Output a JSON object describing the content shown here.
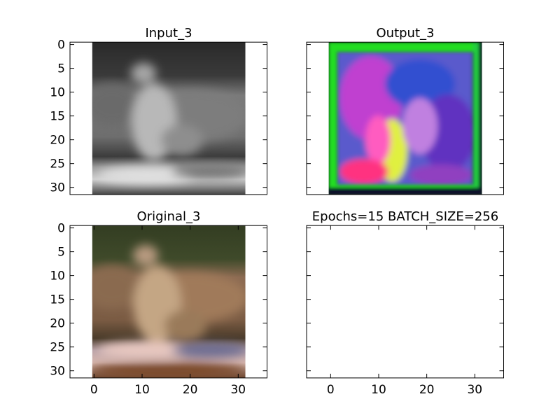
{
  "figure": {
    "background": "#ffffff"
  },
  "chart_data": [
    {
      "type": "image",
      "title": "Input_3",
      "content": "grayscale blurry image of a small bird perched on a log",
      "xlim": [
        -5,
        36
      ],
      "ylim": [
        31.5,
        -0.5
      ],
      "image_extent": [
        -0.5,
        31.5
      ],
      "xticks": [],
      "yticks": [
        0,
        5,
        10,
        15,
        20,
        25,
        30
      ],
      "show_xtick_labels": false,
      "show_ytick_labels": true
    },
    {
      "type": "image",
      "title": "Output_3",
      "content": "colorized reconstruction with green border, magenta, blue and yellow-green regions",
      "xlim": [
        -5,
        36
      ],
      "ylim": [
        31.5,
        -0.5
      ],
      "image_extent": [
        -0.5,
        31.5
      ],
      "xticks": [],
      "yticks": [
        0,
        5,
        10,
        15,
        20,
        25,
        30
      ],
      "show_xtick_labels": false,
      "show_ytick_labels": false
    },
    {
      "type": "image",
      "title": "Original_3",
      "content": "color blurry image of a brown bird on a log, dark green background",
      "xlim": [
        -5,
        36
      ],
      "ylim": [
        31.5,
        -0.5
      ],
      "image_extent": [
        -0.5,
        31.5
      ],
      "xticks": [
        0,
        10,
        20,
        30
      ],
      "yticks": [
        0,
        5,
        10,
        15,
        20,
        25,
        30
      ],
      "show_xtick_labels": true,
      "show_ytick_labels": true
    },
    {
      "type": "empty",
      "title": "Epochs=15 BATCH_SIZE=256",
      "xlim": [
        -5,
        36
      ],
      "ylim": [
        31.5,
        -0.5
      ],
      "xticks": [
        0,
        10,
        20,
        30
      ],
      "yticks": [
        0,
        5,
        10,
        15,
        20,
        25,
        30
      ],
      "show_xtick_labels": true,
      "show_ytick_labels": false
    }
  ]
}
